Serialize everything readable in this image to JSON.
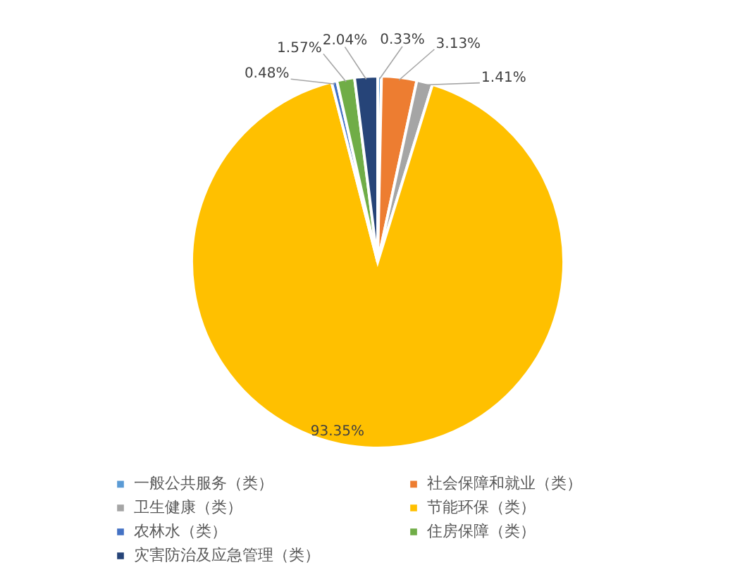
{
  "chart_data": {
    "type": "pie",
    "categories": [
      "一般公共服务（类）",
      "社会保障和就业（类）",
      "卫生健康（类）",
      "节能环保（类）",
      "农林水（类）",
      "住房保障（类）",
      "灾害防治及应急管理（类）"
    ],
    "values": [
      0.33,
      3.13,
      1.41,
      93.35,
      0.48,
      1.57,
      2.04
    ],
    "colors": [
      "#5b9bd5",
      "#ed7d31",
      "#a5a5a5",
      "#ffc000",
      "#4472c4",
      "#70ad47",
      "#264478"
    ],
    "value_labels": [
      "0.33%",
      "3.13%",
      "1.41%",
      "93.35%",
      "0.48%",
      "1.57%",
      "2.04%"
    ],
    "legend": "bottom"
  }
}
